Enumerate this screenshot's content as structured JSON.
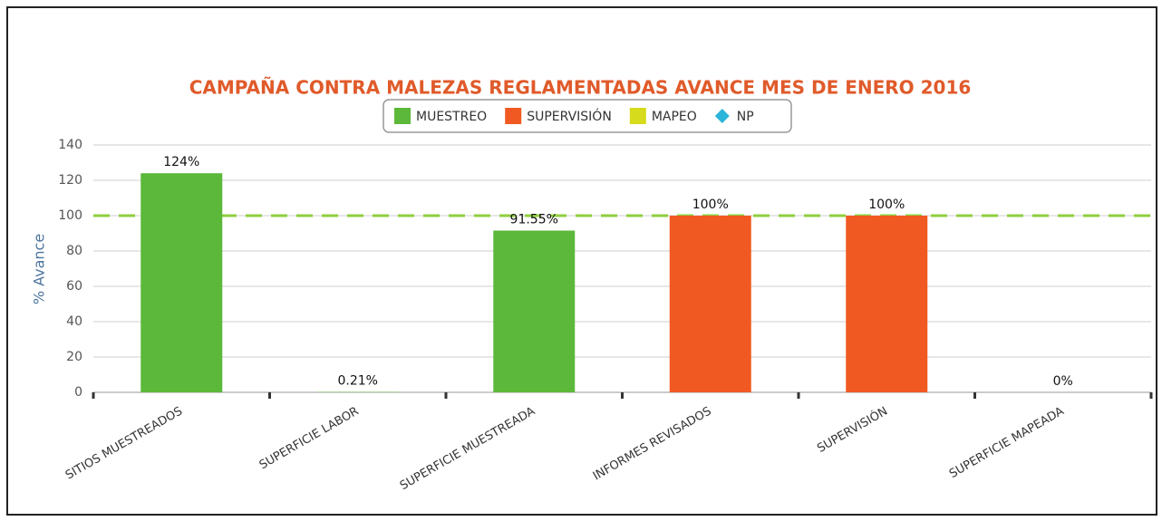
{
  "chart_data": {
    "type": "bar",
    "title": "CAMPAÑA CONTRA MALEZAS REGLAMENTADAS AVANCE MES DE ENERO 2016",
    "y_label": "% Avance",
    "categories": [
      "SITIOS MUESTREADOS",
      "SUPERFICIE LABOR",
      "SUPERFICIE MUESTREADA",
      "INFORMES REVISADOS",
      "SUPERVISIÓN",
      "SUPERFICIE MAPEADA"
    ],
    "series": [
      {
        "name": "MUESTREO",
        "color": "#5cb83a",
        "values": [
          124,
          0.21,
          91.55,
          null,
          null,
          null
        ],
        "value_labels": [
          "124%",
          "0.21%",
          "91.55%",
          null,
          null,
          null
        ]
      },
      {
        "name": "SUPERVISIÓN",
        "color": "#f05a22",
        "values": [
          null,
          null,
          null,
          100,
          100,
          null
        ],
        "value_labels": [
          null,
          null,
          null,
          "100%",
          "100%",
          null
        ]
      },
      {
        "name": "MAPEO",
        "color": "#d6db1c",
        "values": [
          null,
          null,
          null,
          null,
          null,
          0
        ],
        "value_labels": [
          null,
          null,
          null,
          null,
          null,
          "0%"
        ]
      },
      {
        "name": "NP",
        "color": "#2bb5d8",
        "marker": "diamond",
        "values": [
          null,
          null,
          null,
          null,
          null,
          null
        ]
      }
    ],
    "target_line": {
      "value": 100,
      "color": "#8fce3d"
    },
    "ylim": [
      0,
      140
    ],
    "yticks": [
      0,
      20,
      40,
      60,
      80,
      100,
      120,
      140
    ],
    "grid": true
  }
}
